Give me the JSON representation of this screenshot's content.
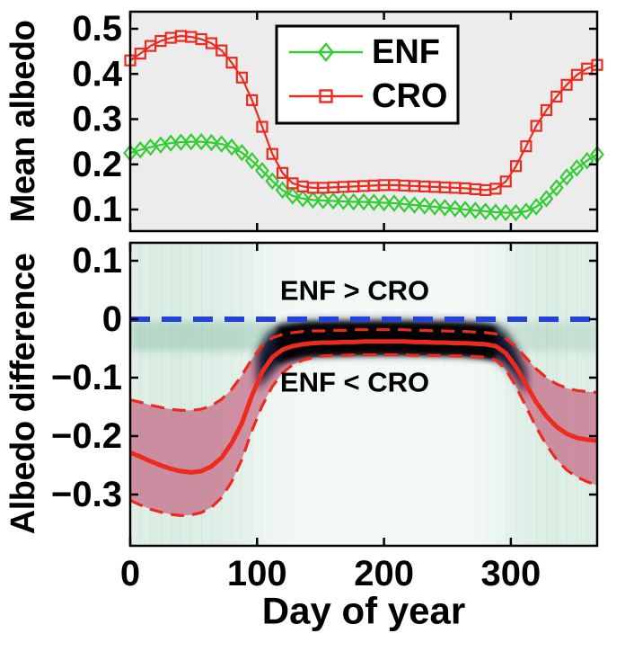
{
  "figure": {
    "top_panel": {
      "ylabel": "Mean albedo",
      "ytick_labels": [
        "0.5",
        "0.4",
        "0.3",
        "0.2",
        "0.1"
      ],
      "legend": [
        {
          "label": "ENF",
          "marker": "diamond",
          "color": "#33cc33"
        },
        {
          "label": "CRO",
          "marker": "square",
          "color": "#ed2a1e"
        }
      ]
    },
    "bottom_panel": {
      "ylabel": "Albedo difference",
      "xlabel": "Day of year",
      "ytick_labels": [
        "0.1",
        "0",
        "−0.1",
        "−0.2",
        "−0.3"
      ],
      "xtick_labels": [
        "0",
        "100",
        "200",
        "300"
      ],
      "annotation_above": "ENF > CRO",
      "annotation_below": "ENF < CRO"
    },
    "colors": {
      "enf_green": "#33cc33",
      "cro_red": "#ed2a1e",
      "ci_band_pink": "#b72555",
      "zero_line_blue": "#2442d8",
      "density_dark": "#060b24",
      "density_mint": "#9ccdb4",
      "density_teal": "#6fae93",
      "top_panel_bg": "#ececec",
      "frame": "#000000"
    }
  },
  "chart_data": [
    {
      "type": "line",
      "panel": "top",
      "title": "",
      "xlabel": "",
      "ylabel": "Mean albedo",
      "ylim": [
        0.052,
        0.538
      ],
      "xlim": [
        0,
        368
      ],
      "yticks": [
        0.5,
        0.4,
        0.3,
        0.2,
        0.1
      ],
      "xticks": [
        0,
        100,
        200,
        300
      ],
      "grid": false,
      "background": "#ececec",
      "legend_position": "upper right inside",
      "x_days": [
        0,
        8,
        16,
        24,
        32,
        40,
        48,
        56,
        64,
        72,
        80,
        88,
        96,
        104,
        112,
        120,
        128,
        136,
        144,
        152,
        160,
        168,
        176,
        184,
        192,
        200,
        208,
        216,
        224,
        232,
        240,
        248,
        256,
        264,
        272,
        280,
        288,
        296,
        304,
        312,
        320,
        328,
        336,
        344,
        352,
        360,
        368
      ],
      "series": [
        {
          "name": "ENF",
          "marker": "diamond",
          "color": "#33cc33",
          "values": [
            0.225,
            0.232,
            0.238,
            0.243,
            0.247,
            0.249,
            0.25,
            0.25,
            0.248,
            0.245,
            0.238,
            0.226,
            0.208,
            0.186,
            0.163,
            0.143,
            0.13,
            0.124,
            0.121,
            0.12,
            0.119,
            0.118,
            0.117,
            0.117,
            0.116,
            0.115,
            0.114,
            0.112,
            0.11,
            0.108,
            0.106,
            0.104,
            0.102,
            0.1,
            0.098,
            0.096,
            0.094,
            0.093,
            0.093,
            0.096,
            0.106,
            0.124,
            0.148,
            0.172,
            0.192,
            0.208,
            0.222
          ]
        },
        {
          "name": "CRO",
          "marker": "square",
          "color": "#ed2a1e",
          "values": [
            0.43,
            0.445,
            0.462,
            0.473,
            0.48,
            0.484,
            0.482,
            0.477,
            0.468,
            0.452,
            0.425,
            0.392,
            0.342,
            0.283,
            0.223,
            0.181,
            0.158,
            0.151,
            0.148,
            0.148,
            0.149,
            0.15,
            0.151,
            0.152,
            0.153,
            0.154,
            0.154,
            0.153,
            0.152,
            0.151,
            0.15,
            0.149,
            0.148,
            0.147,
            0.145,
            0.143,
            0.146,
            0.162,
            0.196,
            0.24,
            0.285,
            0.32,
            0.35,
            0.376,
            0.398,
            0.412,
            0.42
          ]
        }
      ]
    },
    {
      "type": "line-band",
      "panel": "bottom",
      "title": "",
      "xlabel": "Day of year",
      "ylabel": "Albedo difference",
      "ylim": [
        -0.388,
        0.131
      ],
      "xlim": [
        0,
        368
      ],
      "yticks": [
        0.1,
        0,
        -0.1,
        -0.2,
        -0.3
      ],
      "xticks": [
        0,
        100,
        200,
        300
      ],
      "grid": false,
      "background": "#ffffff",
      "x_days": [
        0,
        8,
        16,
        24,
        32,
        40,
        48,
        56,
        64,
        72,
        80,
        88,
        96,
        104,
        112,
        120,
        128,
        136,
        144,
        152,
        160,
        168,
        176,
        184,
        192,
        200,
        208,
        216,
        224,
        232,
        240,
        248,
        256,
        264,
        272,
        280,
        288,
        296,
        304,
        312,
        320,
        328,
        336,
        344,
        352,
        360,
        368
      ],
      "series": [
        {
          "name": "mean_difference",
          "style": "solid",
          "color": "#ed2a1e",
          "width": 5,
          "values": [
            -0.228,
            -0.235,
            -0.243,
            -0.25,
            -0.256,
            -0.26,
            -0.262,
            -0.26,
            -0.252,
            -0.237,
            -0.212,
            -0.178,
            -0.13,
            -0.09,
            -0.065,
            -0.052,
            -0.046,
            -0.043,
            -0.041,
            -0.04,
            -0.04,
            -0.039,
            -0.039,
            -0.038,
            -0.038,
            -0.038,
            -0.038,
            -0.038,
            -0.039,
            -0.039,
            -0.04,
            -0.04,
            -0.041,
            -0.041,
            -0.042,
            -0.043,
            -0.046,
            -0.058,
            -0.082,
            -0.112,
            -0.142,
            -0.166,
            -0.184,
            -0.196,
            -0.203,
            -0.206,
            -0.208
          ]
        },
        {
          "name": "upper_ci",
          "style": "dashed",
          "color": "#ed2a1e",
          "width": 3.2,
          "values": [
            -0.138,
            -0.142,
            -0.147,
            -0.151,
            -0.154,
            -0.156,
            -0.156,
            -0.154,
            -0.148,
            -0.137,
            -0.12,
            -0.096,
            -0.068,
            -0.045,
            -0.032,
            -0.026,
            -0.023,
            -0.021,
            -0.02,
            -0.02,
            -0.019,
            -0.019,
            -0.018,
            -0.018,
            -0.018,
            -0.018,
            -0.018,
            -0.018,
            -0.019,
            -0.019,
            -0.02,
            -0.02,
            -0.021,
            -0.021,
            -0.022,
            -0.023,
            -0.025,
            -0.033,
            -0.047,
            -0.066,
            -0.085,
            -0.1,
            -0.111,
            -0.118,
            -0.122,
            -0.124,
            -0.125
          ]
        },
        {
          "name": "lower_ci",
          "style": "dashed",
          "color": "#ed2a1e",
          "width": 3.2,
          "values": [
            -0.31,
            -0.318,
            -0.325,
            -0.33,
            -0.334,
            -0.336,
            -0.335,
            -0.331,
            -0.322,
            -0.305,
            -0.278,
            -0.24,
            -0.19,
            -0.148,
            -0.115,
            -0.092,
            -0.078,
            -0.07,
            -0.066,
            -0.063,
            -0.062,
            -0.062,
            -0.061,
            -0.061,
            -0.061,
            -0.061,
            -0.061,
            -0.061,
            -0.062,
            -0.062,
            -0.062,
            -0.062,
            -0.063,
            -0.063,
            -0.064,
            -0.065,
            -0.07,
            -0.086,
            -0.115,
            -0.15,
            -0.185,
            -0.215,
            -0.24,
            -0.258,
            -0.27,
            -0.278,
            -0.284
          ]
        }
      ],
      "band": {
        "between": [
          "upper_ci",
          "lower_ci"
        ],
        "color": "#b72555",
        "opacity": 0.48
      },
      "zero_line": {
        "value": 0,
        "style": "dashed",
        "color": "#2442d8",
        "width": 6
      },
      "annotations": [
        {
          "text": "ENF > CRO",
          "day": 176,
          "value": 0.049
        },
        {
          "text": "ENF < CRO",
          "day": 176,
          "value": -0.108
        }
      ],
      "density": {
        "comment": "2D histogram shading behind curves",
        "bin_days": 8,
        "profile": [
          0.58,
          0.62,
          0.66,
          0.62,
          0.7,
          0.66,
          0.62,
          0.64,
          0.6,
          0.55,
          0.5,
          0.44,
          0.34,
          0.24,
          0.16,
          0.12,
          0.1,
          0.09,
          0.1,
          0.08,
          0.11,
          0.09,
          0.1,
          0.08,
          0.09,
          0.1,
          0.08,
          0.11,
          0.09,
          0.1,
          0.08,
          0.09,
          0.1,
          0.12,
          0.14,
          0.2,
          0.3,
          0.44,
          0.52,
          0.56,
          0.62,
          0.66,
          0.62,
          0.58,
          0.62,
          0.6
        ],
        "blob_days": [
          100,
          108,
          116,
          124,
          140,
          180,
          220,
          260,
          280,
          288,
          296,
          304,
          312
        ],
        "blob_upper": [
          -0.06,
          -0.025,
          -0.012,
          -0.006,
          -0.004,
          -0.003,
          -0.003,
          -0.004,
          -0.006,
          -0.01,
          -0.022,
          -0.05,
          -0.09
        ],
        "blob_lower": [
          -0.12,
          -0.1,
          -0.082,
          -0.07,
          -0.062,
          -0.06,
          -0.06,
          -0.062,
          -0.064,
          -0.068,
          -0.08,
          -0.1,
          -0.13
        ],
        "core_days": [
          116,
          140,
          200,
          260,
          288
        ],
        "core_upper": [
          -0.013,
          -0.006,
          -0.005,
          -0.007,
          -0.012
        ],
        "core_lower": [
          -0.075,
          -0.063,
          -0.06,
          -0.062,
          -0.07
        ],
        "subzero_bands": [
          {
            "from_day": 0,
            "to_day": 112,
            "upper": -0.004,
            "lower": -0.055,
            "opacity": 0.35
          },
          {
            "from_day": 288,
            "to_day": 368,
            "upper": -0.004,
            "lower": -0.055,
            "opacity": 0.22
          }
        ]
      }
    }
  ]
}
